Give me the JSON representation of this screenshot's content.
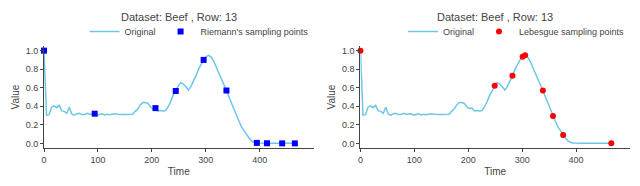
{
  "chart_data": [
    {
      "type": "line",
      "title": "Dataset: Beef , Row: 13",
      "xlabel": "Time",
      "ylabel": "Value",
      "xlim": [
        0,
        500
      ],
      "xticks": [
        0,
        100,
        200,
        300,
        400
      ],
      "ylim": [
        -0.05,
        1.05
      ],
      "yticks": [
        {
          "value": 0,
          "label": "0.0"
        },
        0.2,
        0.4,
        0.6,
        0.8,
        {
          "value": 1,
          "label": "1.0"
        }
      ],
      "grid": false,
      "legend": "upper right",
      "series": [
        {
          "name": "Original",
          "type": "line",
          "color": "#6ec6e6",
          "x": [
            0,
            4.7,
            9.4,
            14.1,
            18.8,
            23.5,
            28.2,
            32.9,
            37.6,
            42.3,
            47,
            51.7,
            56.4,
            61.1,
            65.8,
            70.5,
            75.2,
            79.9,
            84.6,
            89.3,
            94,
            98.7,
            103.4,
            108.1,
            112.8,
            117.5,
            122.2,
            126.9,
            131.6,
            136.3,
            141,
            145.7,
            150.4,
            155.1,
            159.8,
            164.5,
            169.2,
            173.9,
            178.6,
            183.3,
            188,
            192.7,
            197.4,
            202.1,
            206.8,
            211.5,
            216.2,
            220.9,
            225.6,
            230.3,
            235,
            239.7,
            244.4,
            249.1,
            253.8,
            258.5,
            263.2,
            267.9,
            272.6,
            277.3,
            282,
            286.7,
            291.4,
            296.1,
            300.8,
            305.5,
            310.2,
            314.9,
            319.6,
            324.3,
            329,
            333.7,
            338.4,
            343.1,
            347.8,
            352.5,
            357.2,
            361.9,
            366.6,
            371.3,
            376,
            380.7,
            385.4,
            390.1,
            394.8,
            399.5,
            404.2,
            408.9,
            413.6,
            418.3,
            423,
            427.7,
            432.4,
            437.1,
            441.8,
            446.5,
            451.2,
            455.9,
            460.6,
            465.3,
            470
          ],
          "values": [
            1.0,
            0.305,
            0.31,
            0.39,
            0.405,
            0.385,
            0.41,
            0.35,
            0.345,
            0.325,
            0.39,
            0.315,
            0.305,
            0.32,
            0.325,
            0.31,
            0.31,
            0.325,
            0.315,
            0.315,
            0.32,
            0.305,
            0.31,
            0.32,
            0.305,
            0.315,
            0.31,
            0.315,
            0.32,
            0.315,
            0.31,
            0.31,
            0.31,
            0.31,
            0.315,
            0.315,
            0.345,
            0.37,
            0.415,
            0.44,
            0.44,
            0.43,
            0.395,
            0.375,
            0.38,
            0.35,
            0.355,
            0.35,
            0.355,
            0.395,
            0.45,
            0.52,
            0.565,
            0.62,
            0.655,
            0.64,
            0.61,
            0.575,
            0.615,
            0.67,
            0.73,
            0.8,
            0.855,
            0.9,
            0.935,
            0.95,
            0.93,
            0.885,
            0.82,
            0.76,
            0.7,
            0.635,
            0.57,
            0.5,
            0.43,
            0.36,
            0.295,
            0.235,
            0.175,
            0.13,
            0.09,
            0.055,
            0.025,
            0.01,
            0.005,
            0.002,
            0.001,
            0.001,
            0.001,
            0.0,
            0.0,
            0.0,
            0.0,
            0.0,
            0.0,
            0.0,
            0.0,
            0.0,
            0.0,
            0.0,
            0.0
          ]
        },
        {
          "name": "Riemann's sampling points",
          "type": "scatter",
          "color": "blue",
          "marker": "square",
          "x": [
            0,
            94,
            206.8,
            244.4,
            296.1,
            338.4,
            394.8,
            413.6,
            441.8,
            465.3
          ],
          "values": [
            1.0,
            0.32,
            0.38,
            0.565,
            0.9,
            0.57,
            0.005,
            0.001,
            0.0,
            0.0
          ]
        }
      ]
    },
    {
      "type": "line",
      "title": "Dataset: Beef , Row: 13",
      "xlabel": "Time",
      "ylabel": "Value",
      "xlim": [
        0,
        500
      ],
      "xticks": [
        0,
        100,
        200,
        300,
        400
      ],
      "ylim": [
        -0.05,
        1.05
      ],
      "yticks": [
        {
          "value": 0,
          "label": "0.0"
        },
        0.2,
        0.4,
        0.6,
        0.8,
        {
          "value": 1,
          "label": "1.0"
        }
      ],
      "grid": false,
      "legend": "upper right",
      "series": [
        {
          "name": "Original",
          "type": "line",
          "color": "#6ec6e6",
          "x": [
            0,
            4.7,
            9.4,
            14.1,
            18.8,
            23.5,
            28.2,
            32.9,
            37.6,
            42.3,
            47,
            51.7,
            56.4,
            61.1,
            65.8,
            70.5,
            75.2,
            79.9,
            84.6,
            89.3,
            94,
            98.7,
            103.4,
            108.1,
            112.8,
            117.5,
            122.2,
            126.9,
            131.6,
            136.3,
            141,
            145.7,
            150.4,
            155.1,
            159.8,
            164.5,
            169.2,
            173.9,
            178.6,
            183.3,
            188,
            192.7,
            197.4,
            202.1,
            206.8,
            211.5,
            216.2,
            220.9,
            225.6,
            230.3,
            235,
            239.7,
            244.4,
            249.1,
            253.8,
            258.5,
            263.2,
            267.9,
            272.6,
            277.3,
            282,
            286.7,
            291.4,
            296.1,
            300.8,
            305.5,
            310.2,
            314.9,
            319.6,
            324.3,
            329,
            333.7,
            338.4,
            343.1,
            347.8,
            352.5,
            357.2,
            361.9,
            366.6,
            371.3,
            376,
            380.7,
            385.4,
            390.1,
            394.8,
            399.5,
            404.2,
            408.9,
            413.6,
            418.3,
            423,
            427.7,
            432.4,
            437.1,
            441.8,
            446.5,
            451.2,
            455.9,
            460.6,
            465.3,
            470
          ],
          "values": [
            1.0,
            0.305,
            0.31,
            0.39,
            0.405,
            0.385,
            0.41,
            0.35,
            0.345,
            0.325,
            0.39,
            0.315,
            0.305,
            0.32,
            0.325,
            0.31,
            0.31,
            0.325,
            0.315,
            0.315,
            0.32,
            0.305,
            0.31,
            0.32,
            0.305,
            0.315,
            0.31,
            0.315,
            0.32,
            0.315,
            0.31,
            0.31,
            0.31,
            0.31,
            0.315,
            0.315,
            0.345,
            0.37,
            0.415,
            0.44,
            0.44,
            0.43,
            0.395,
            0.375,
            0.38,
            0.35,
            0.355,
            0.35,
            0.355,
            0.395,
            0.45,
            0.52,
            0.565,
            0.62,
            0.655,
            0.64,
            0.61,
            0.575,
            0.615,
            0.67,
            0.73,
            0.8,
            0.855,
            0.9,
            0.935,
            0.95,
            0.93,
            0.885,
            0.82,
            0.76,
            0.7,
            0.635,
            0.57,
            0.5,
            0.43,
            0.36,
            0.295,
            0.235,
            0.175,
            0.13,
            0.09,
            0.055,
            0.025,
            0.01,
            0.005,
            0.002,
            0.001,
            0.001,
            0.001,
            0.0,
            0.0,
            0.0,
            0.0,
            0.0,
            0.0,
            0.0,
            0.0,
            0.0,
            0.0,
            0.0,
            0.0
          ]
        },
        {
          "name": "Lebesgue sampling points",
          "type": "scatter",
          "color": "red",
          "marker": "circle",
          "x": [
            0,
            249.1,
            282,
            300.8,
            305.5,
            338.4,
            357.2,
            376,
            465.3
          ],
          "values": [
            1.0,
            0.62,
            0.73,
            0.935,
            0.95,
            0.57,
            0.295,
            0.09,
            0.0
          ]
        }
      ]
    }
  ]
}
